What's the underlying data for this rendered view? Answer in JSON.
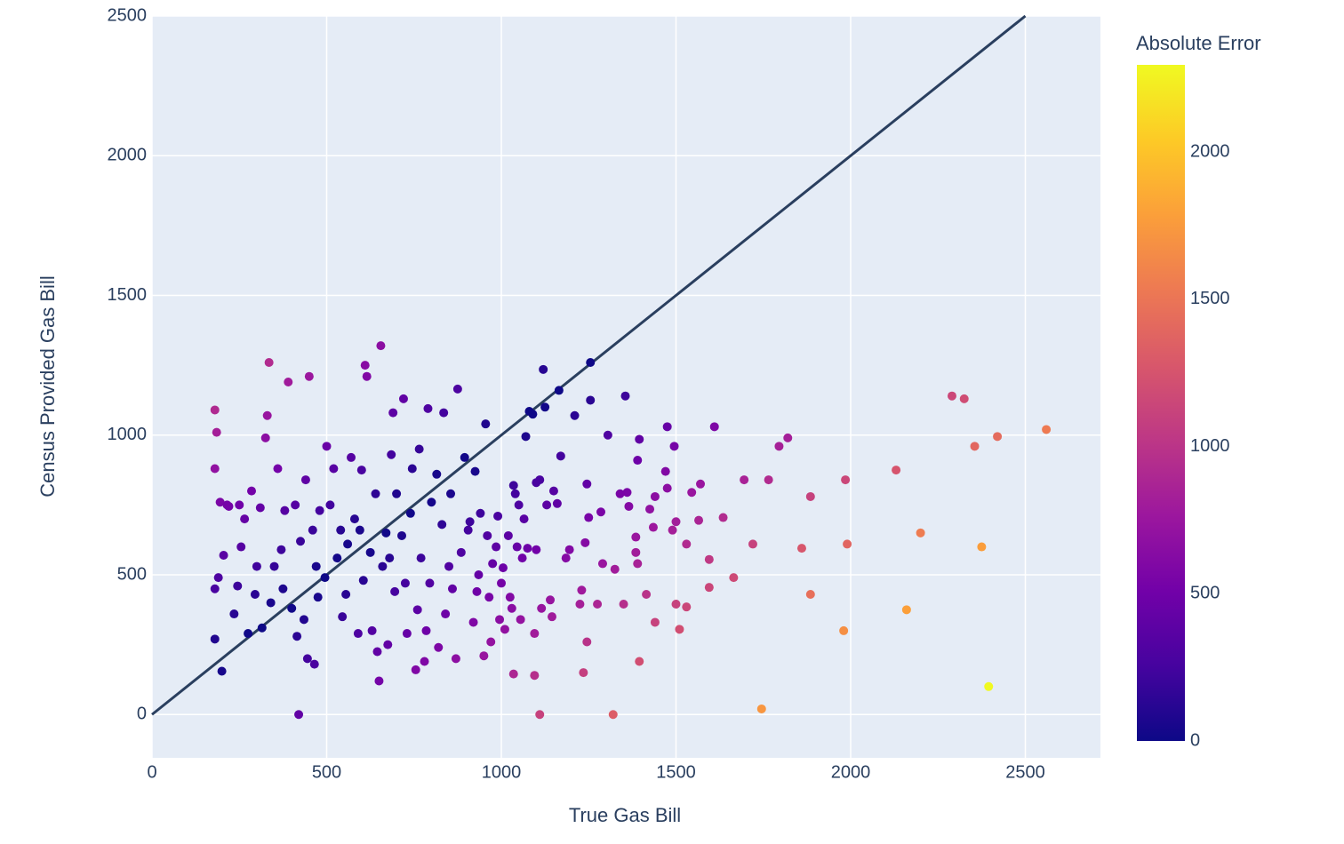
{
  "chart_data": {
    "type": "scatter",
    "x_label": "True Gas Bill",
    "y_label": "Census Provided Gas Bill",
    "colorbar_title": "Absolute Error",
    "xlim": [
      0,
      2715
    ],
    "ylim": [
      -155,
      2500
    ],
    "xticks": [
      0,
      500,
      1000,
      1500,
      2000,
      2500
    ],
    "yticks": [
      0,
      500,
      1000,
      1500,
      2000,
      2500
    ],
    "clim": [
      0,
      2296
    ],
    "cticks": [
      0,
      500,
      1000,
      1500,
      2000
    ],
    "colorscale": [
      "#0d0887",
      "#46039f",
      "#7201a8",
      "#9c179e",
      "#bd3786",
      "#d8576b",
      "#ed7953",
      "#fb9f3a",
      "#fdca26",
      "#f0f921"
    ],
    "grid": true,
    "background": "#e5ecf6",
    "reference_line": {
      "x": [
        0,
        2500
      ],
      "y": [
        0,
        2500
      ],
      "color": "#2a3f5f"
    },
    "x": [
      2560,
      2420,
      2355,
      2290,
      2325,
      2395,
      2375,
      2200,
      2160,
      2130,
      1980,
      1990,
      1985,
      1885,
      1885,
      1860,
      1820,
      1795,
      1765,
      1745,
      1720,
      1695,
      1665,
      1635,
      1610,
      1595,
      1595,
      1570,
      1565,
      1545,
      1530,
      1530,
      1510,
      1500,
      1500,
      1495,
      1490,
      1475,
      1475,
      1470,
      1440,
      1440,
      1435,
      1425,
      1415,
      1395,
      1395,
      1390,
      1390,
      1385,
      1385,
      1365,
      1360,
      1355,
      1350,
      1340,
      1325,
      1320,
      1305,
      1290,
      1285,
      1275,
      1255,
      1255,
      1250,
      1245,
      1245,
      1240,
      1235,
      1230,
      1225,
      1210,
      1195,
      1185,
      1170,
      1165,
      1160,
      1150,
      1145,
      1140,
      1130,
      1125,
      1120,
      1115,
      1110,
      1110,
      1100,
      1100,
      1095,
      1095,
      1090,
      1080,
      1075,
      1070,
      1065,
      1060,
      1055,
      1050,
      1045,
      1040,
      1035,
      1035,
      1030,
      1025,
      1020,
      1010,
      1005,
      1000,
      995,
      990,
      985,
      975,
      970,
      965,
      960,
      955,
      950,
      940,
      935,
      930,
      925,
      920,
      910,
      905,
      895,
      885,
      875,
      870,
      860,
      855,
      850,
      840,
      835,
      830,
      820,
      815,
      800,
      795,
      790,
      785,
      780,
      770,
      765,
      760,
      755,
      745,
      740,
      730,
      725,
      720,
      715,
      700,
      695,
      690,
      685,
      680,
      675,
      670,
      660,
      655,
      650,
      645,
      640,
      630,
      625,
      615,
      610,
      605,
      600,
      595,
      590,
      580,
      570,
      560,
      555,
      545,
      540,
      530,
      520,
      510,
      500,
      495,
      480,
      475,
      470,
      465,
      460,
      450,
      445,
      440,
      435,
      425,
      420,
      415,
      410,
      400,
      390,
      380,
      375,
      370,
      360,
      350,
      340,
      335,
      330,
      325,
      315,
      310,
      300,
      295,
      285,
      275,
      265,
      255,
      245,
      235,
      220,
      205,
      200,
      195,
      190,
      185,
      180,
      180,
      180,
      180,
      215,
      250
    ],
    "y": [
      1020,
      995,
      960,
      1140,
      1130,
      100,
      600,
      650,
      375,
      875,
      300,
      610,
      840,
      780,
      430,
      595,
      990,
      960,
      840,
      20,
      610,
      840,
      490,
      705,
      1030,
      555,
      455,
      825,
      695,
      795,
      610,
      385,
      305,
      690,
      395,
      960,
      660,
      1030,
      810,
      870,
      780,
      330,
      670,
      735,
      430,
      985,
      190,
      540,
      910,
      580,
      635,
      745,
      795,
      1140,
      395,
      790,
      520,
      0,
      1000,
      540,
      725,
      395,
      1260,
      1125,
      705,
      825,
      260,
      615,
      150,
      445,
      395,
      1070,
      590,
      560,
      925,
      1160,
      755,
      800,
      350,
      410,
      750,
      1100,
      1235,
      380,
      840,
      0,
      590,
      830,
      290,
      140,
      1075,
      1085,
      595,
      995,
      700,
      560,
      340,
      750,
      600,
      790,
      145,
      820,
      380,
      420,
      640,
      305,
      525,
      470,
      340,
      710,
      600,
      540,
      260,
      420,
      640,
      1040,
      210,
      720,
      500,
      440,
      870,
      330,
      690,
      660,
      920,
      580,
      1165,
      200,
      450,
      790,
      530,
      360,
      1080,
      680,
      240,
      860,
      760,
      470,
      1095,
      300,
      190,
      560,
      950,
      375,
      160,
      880,
      720,
      290,
      470,
      1130,
      640,
      790,
      440,
      1080,
      930,
      560,
      250,
      650,
      530,
      1320,
      120,
      225,
      790,
      300,
      580,
      1210,
      1250,
      480,
      875,
      660,
      290,
      700,
      920,
      610,
      430,
      350,
      660,
      560,
      880,
      750,
      960,
      490,
      730,
      420,
      530,
      180,
      660,
      1210,
      200,
      840,
      340,
      620,
      0,
      280,
      750,
      380,
      1190,
      730,
      450,
      590,
      880,
      530,
      400,
      1260,
      1070,
      990,
      310,
      740,
      530,
      430,
      800,
      290,
      700,
      600,
      460,
      360,
      745,
      570,
      155,
      760,
      490,
      1010,
      1090,
      880,
      270,
      450,
      750,
      750
    ]
  }
}
